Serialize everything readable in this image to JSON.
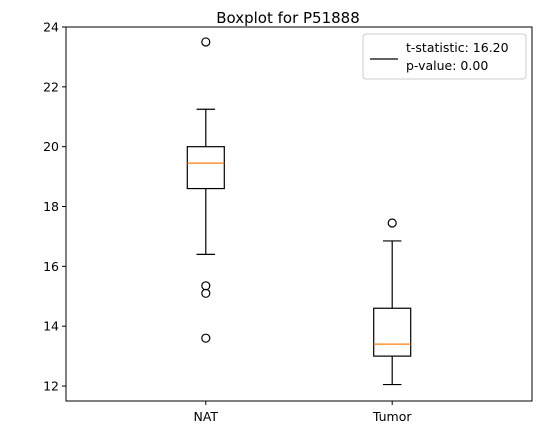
{
  "chart_data": {
    "type": "box",
    "title": "Boxplot for P51888",
    "xlabel": "",
    "ylabel": "",
    "ylim": [
      11.5,
      24.0
    ],
    "yticks": [
      12,
      14,
      16,
      18,
      20,
      22,
      24
    ],
    "categories": [
      "NAT",
      "Tumor"
    ],
    "boxes": [
      {
        "category": "NAT",
        "whisker_low": 16.4,
        "q1": 18.6,
        "median": 19.45,
        "q3": 20.0,
        "whisker_high": 21.25,
        "outliers": [
          23.5,
          15.35,
          15.1,
          13.6
        ]
      },
      {
        "category": "Tumor",
        "whisker_low": 12.05,
        "q1": 13.0,
        "median": 13.4,
        "q3": 14.6,
        "whisker_high": 16.85,
        "outliers": [
          17.45
        ]
      }
    ],
    "legend": {
      "placement": "top-right",
      "entries": [
        "t-statistic: 16.20",
        "p-value: 0.00"
      ]
    },
    "grid": false,
    "colors": {
      "box": "#000000",
      "median": "#ff7f0e",
      "background": "#ffffff"
    }
  }
}
